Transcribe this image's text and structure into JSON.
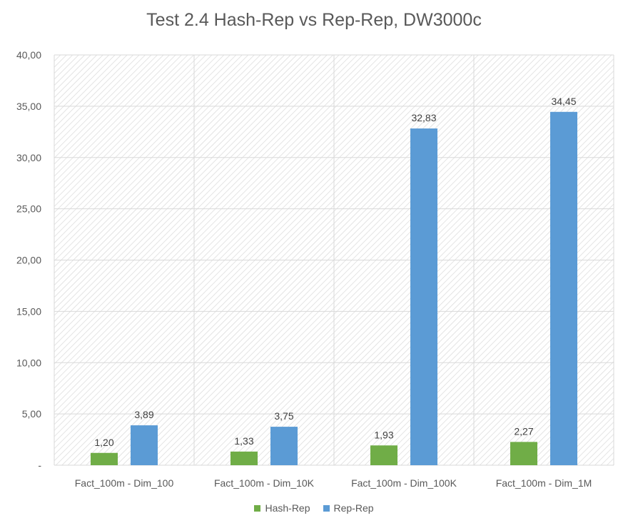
{
  "chart_data": {
    "type": "bar",
    "title": "Test 2.4 Hash-Rep vs Rep-Rep, DW3000c",
    "xlabel": "",
    "ylabel": "",
    "categories": [
      "Fact_100m - Dim_100",
      "Fact_100m - Dim_10K",
      "Fact_100m - Dim_100K",
      "Fact_100m - Dim_1M"
    ],
    "series": [
      {
        "name": "Hash-Rep",
        "color": "#70ad47",
        "values": [
          1.2,
          1.33,
          1.93,
          2.27
        ],
        "labels": [
          "1,20",
          "1,33",
          "1,93",
          "2,27"
        ]
      },
      {
        "name": "Rep-Rep",
        "color": "#5b9bd5",
        "values": [
          3.89,
          3.75,
          32.83,
          34.45
        ],
        "labels": [
          "3,89",
          "3,75",
          "32,83",
          "34,45"
        ]
      }
    ],
    "ylim": [
      0,
      40
    ],
    "yticks": [
      0,
      5,
      10,
      15,
      20,
      25,
      30,
      35,
      40
    ],
    "ytick_labels": [
      "-",
      "5,00",
      "10,00",
      "15,00",
      "20,00",
      "25,00",
      "30,00",
      "35,00",
      "40,00"
    ],
    "grid": true,
    "plot_background": "hatched",
    "legend_position": "bottom"
  }
}
